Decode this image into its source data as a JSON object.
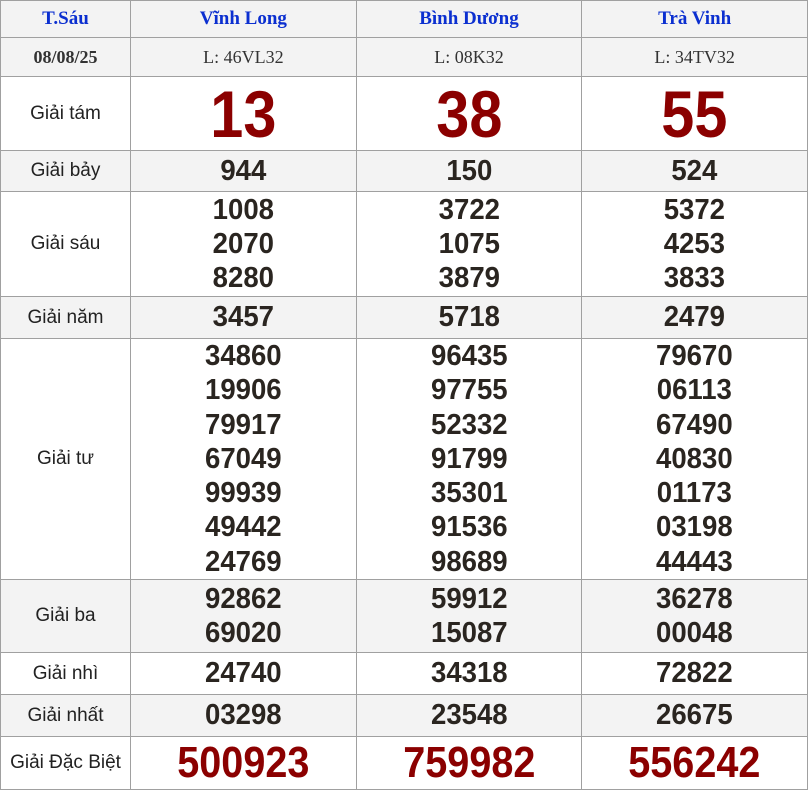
{
  "header": {
    "day": "T.Sáu",
    "provinces": [
      "Vĩnh Long",
      "Bình Dương",
      "Trà Vinh"
    ]
  },
  "date_row": {
    "date": "08/08/25",
    "tickets": [
      "L: 46VL32",
      "L: 08K32",
      "L: 34TV32"
    ]
  },
  "prizes": [
    {
      "label": "Giải tám",
      "style": "big",
      "height": 73,
      "gray": false,
      "values": [
        [
          "13"
        ],
        [
          "38"
        ],
        [
          "55"
        ]
      ]
    },
    {
      "label": "Giải bảy",
      "style": "num",
      "height": 40,
      "gray": true,
      "values": [
        [
          "944"
        ],
        [
          "150"
        ],
        [
          "524"
        ]
      ]
    },
    {
      "label": "Giải sáu",
      "style": "num",
      "height": 104,
      "gray": false,
      "values": [
        [
          "1008",
          "2070",
          "8280"
        ],
        [
          "3722",
          "1075",
          "3879"
        ],
        [
          "5372",
          "4253",
          "3833"
        ]
      ]
    },
    {
      "label": "Giải năm",
      "style": "num",
      "height": 41,
      "gray": true,
      "values": [
        [
          "3457"
        ],
        [
          "5718"
        ],
        [
          "2479"
        ]
      ]
    },
    {
      "label": "Giải tư",
      "style": "num",
      "height": 240,
      "gray": false,
      "values": [
        [
          "34860",
          "19906",
          "79917",
          "67049",
          "99939",
          "49442",
          "24769"
        ],
        [
          "96435",
          "97755",
          "52332",
          "91799",
          "35301",
          "91536",
          "98689"
        ],
        [
          "79670",
          "06113",
          "67490",
          "40830",
          "01173",
          "03198",
          "44443"
        ]
      ]
    },
    {
      "label": "Giải ba",
      "style": "num",
      "height": 72,
      "gray": true,
      "values": [
        [
          "92862",
          "69020"
        ],
        [
          "59912",
          "15087"
        ],
        [
          "36278",
          "00048"
        ]
      ]
    },
    {
      "label": "Giải nhì",
      "style": "num",
      "height": 41,
      "gray": false,
      "values": [
        [
          "24740"
        ],
        [
          "34318"
        ],
        [
          "72822"
        ]
      ]
    },
    {
      "label": "Giải nhất",
      "style": "num",
      "height": 41,
      "gray": true,
      "values": [
        [
          "03298"
        ],
        [
          "23548"
        ],
        [
          "26675"
        ]
      ]
    },
    {
      "label": "Giải Đặc Biệt",
      "style": "db",
      "height": 52,
      "gray": false,
      "values": [
        [
          "500923"
        ],
        [
          "759982"
        ],
        [
          "556242"
        ]
      ]
    }
  ],
  "colors": {
    "province": "#0b2fd0",
    "highlight_number": "#8b0000",
    "number": "#2a2520",
    "stripe": "#f3f3f3",
    "border": "#a0a0a0"
  }
}
